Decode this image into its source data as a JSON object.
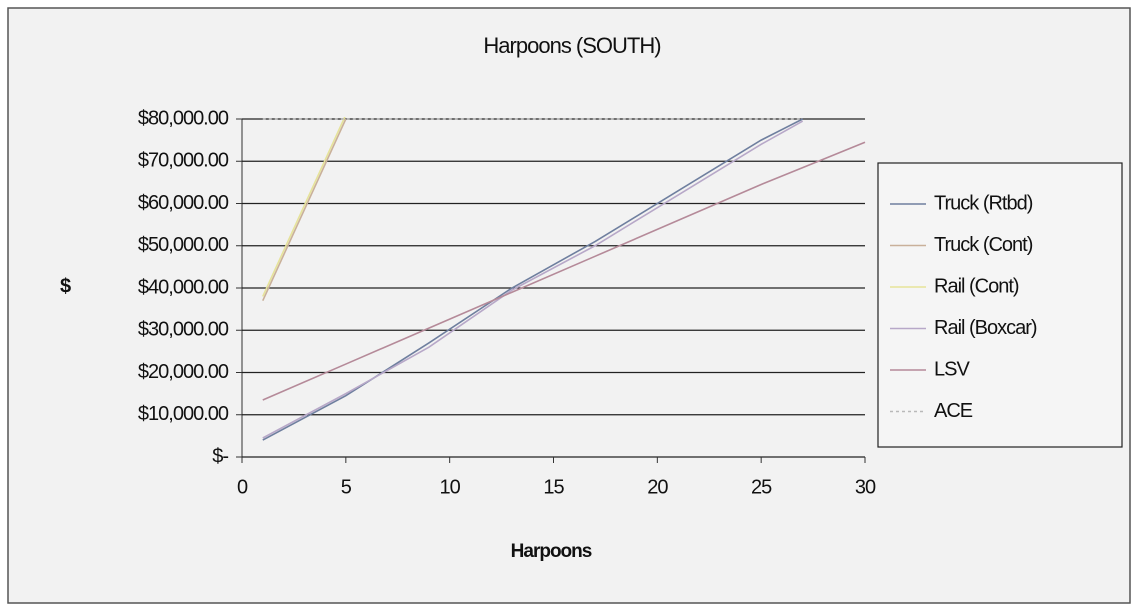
{
  "chart_data": {
    "type": "line",
    "title": "Harpoons (SOUTH)",
    "xlabel": "Harpoons",
    "ylabel": "$",
    "x": [
      1,
      5,
      9,
      13,
      17,
      21,
      25,
      27,
      30
    ],
    "series": [
      {
        "name": "Truck (Rtbd)",
        "color": "#6f7f9f",
        "values": [
          4000,
          14500,
          27000,
          40000,
          51000,
          63000,
          75000,
          80000,
          null
        ]
      },
      {
        "name": "Truck (Cont)",
        "color": "#c9b09a",
        "values": [
          37000,
          80000,
          null,
          null,
          null,
          null,
          null,
          null,
          null
        ]
      },
      {
        "name": "Rail (Cont)",
        "color": "#e6e39a",
        "values": [
          38000,
          81000,
          null,
          null,
          null,
          null,
          null,
          null,
          null
        ]
      },
      {
        "name": "Rail (Boxcar)",
        "color": "#b7a8c8",
        "values": [
          4500,
          15000,
          26000,
          39500,
          50000,
          62000,
          74000,
          79500,
          null
        ]
      },
      {
        "name": "LSV",
        "color": "#b58a99",
        "values": [
          13500,
          22000,
          30500,
          39000,
          47500,
          56000,
          64500,
          68500,
          74500
        ]
      },
      {
        "name": "ACE",
        "color": "#b9b9b9",
        "dashed": true,
        "values": [
          80000,
          80000,
          80000,
          80000,
          80000,
          80000,
          80000,
          80000,
          null
        ]
      }
    ],
    "xlim": [
      0,
      30
    ],
    "xticks": [
      0,
      5,
      10,
      15,
      20,
      25,
      30
    ],
    "ylim": [
      0,
      80000
    ],
    "yticks": [
      {
        "value": 0,
        "label": "$-"
      },
      {
        "value": 10000,
        "label": "$10,000.00"
      },
      {
        "value": 20000,
        "label": "$20,000.00"
      },
      {
        "value": 30000,
        "label": "$30,000.00"
      },
      {
        "value": 40000,
        "label": "$40,000.00"
      },
      {
        "value": 50000,
        "label": "$50,000.00"
      },
      {
        "value": 60000,
        "label": "$60,000.00"
      },
      {
        "value": 70000,
        "label": "$70,000.00"
      },
      {
        "value": 80000,
        "label": "$80,000.00"
      }
    ],
    "grid": true,
    "legend": "right"
  }
}
